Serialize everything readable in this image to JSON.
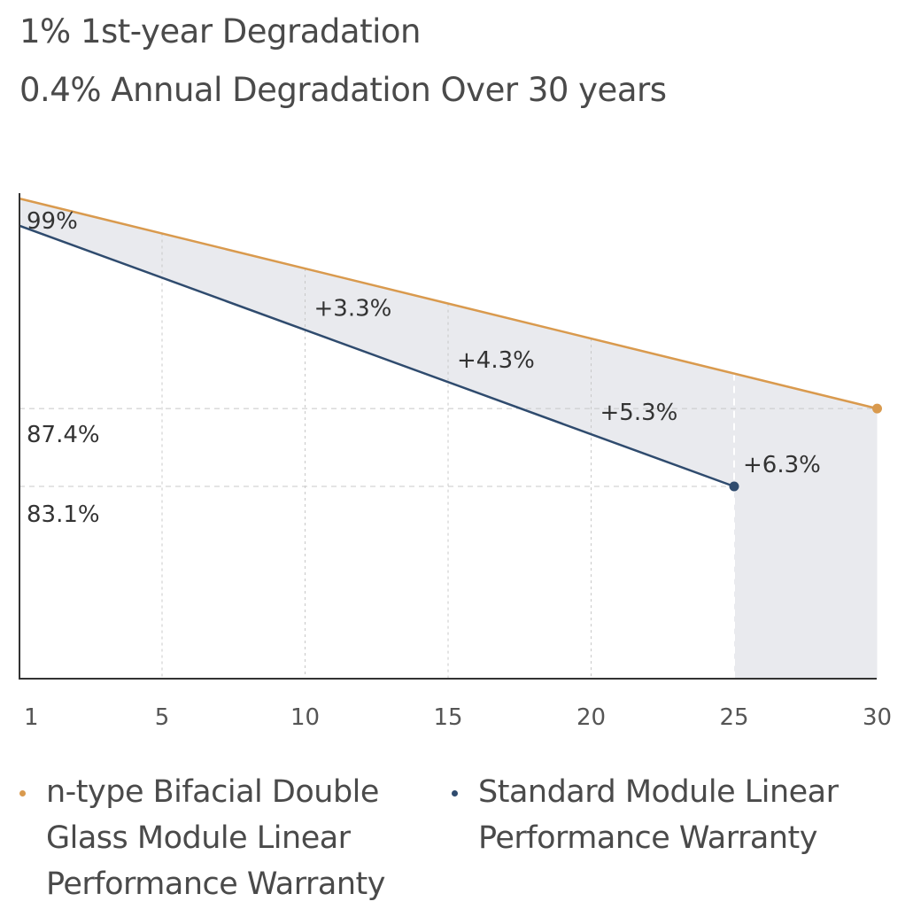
{
  "header": {
    "line1": "1% 1st-year Degradation",
    "line2": "0.4% Annual Degradation Over 30 years"
  },
  "colors": {
    "ntype": "#d99a4e",
    "standard": "#2f4b6e",
    "band": "#e9eaee",
    "axis": "#333333",
    "grid": "#c8c8c8"
  },
  "chart_data": {
    "type": "line",
    "x_ticks": [
      "1",
      "5",
      "10",
      "15",
      "20",
      "25",
      "30"
    ],
    "series": [
      {
        "name": "n-type Bifacial Double Glass Module Linear Performance Warranty",
        "color_key": "ntype",
        "x": [
          1,
          30
        ],
        "y": [
          99,
          87.4
        ]
      },
      {
        "name": "Standard Module Linear Performance Warranty",
        "color_key": "standard",
        "x": [
          1,
          25
        ],
        "y": [
          97.5,
          83.1
        ]
      }
    ],
    "y_labels": [
      {
        "text": "99%",
        "value": 99
      },
      {
        "text": "87.4%",
        "value": 87.4
      },
      {
        "text": "83.1%",
        "value": 83.1
      }
    ],
    "annotations": [
      {
        "text": "+3.3%",
        "x": 10
      },
      {
        "text": "+4.3%",
        "x": 15
      },
      {
        "text": "+5.3%",
        "x": 20
      },
      {
        "text": "+6.3%",
        "x": 25
      }
    ]
  },
  "legend": [
    {
      "label": "n-type Bifacial Double\nGlass Module Linear\nPerformance Warranty",
      "color_key": "ntype"
    },
    {
      "label": "Standard Module Linear\nPerformance Warranty",
      "color_key": "standard"
    }
  ]
}
